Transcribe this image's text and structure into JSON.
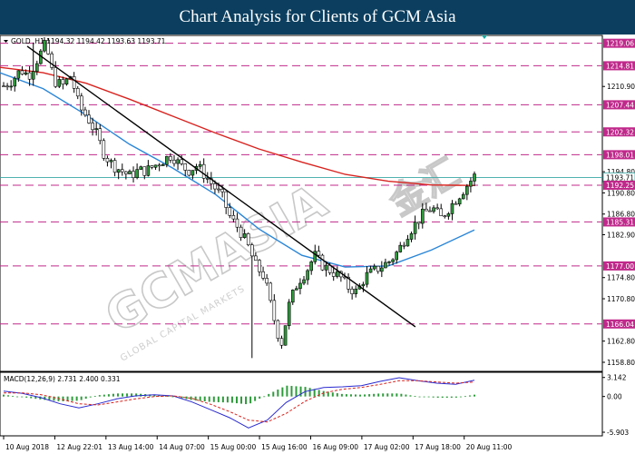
{
  "banner": {
    "title": "Chart Analysis for Clients of GCM Asia"
  },
  "watermark": {
    "text": "GCMASIA",
    "chinese": "金汇",
    "subtext": "GLOBAL CAPITAL MARKETS"
  },
  "chart_data": {
    "type": "candlestick",
    "header": "GOLD ,H1  1194.32 1194.42 1193.63 1193.71",
    "symbol": "GOLD",
    "timeframe": "H1",
    "ohlc_header": [
      1194.32,
      1194.42,
      1193.63,
      1193.71
    ],
    "price_axis_labels": [
      1219.06,
      1214.81,
      1210.9,
      1207.44,
      1202.32,
      1198.01,
      1194.8,
      1193.71,
      1192.25,
      1190.8,
      1186.8,
      1185.31,
      1182.9,
      1177.0,
      1174.8,
      1170.8,
      1166.04,
      1162.8,
      1158.8
    ],
    "ylim": [
      1157.6,
      1220.2
    ],
    "support_resistance_levels": [
      1219.06,
      1214.81,
      1207.44,
      1202.32,
      1198.01,
      1192.25,
      1185.31,
      1177.0,
      1166.04
    ],
    "current_price": 1193.71,
    "time_labels": [
      "10 Aug 2018",
      "12 Aug 22:01",
      "13 Aug 14:00",
      "14 Aug 07:00",
      "15 Aug 00:00",
      "15 Aug 16:00",
      "16 Aug 09:00",
      "17 Aug 02:00",
      "17 Aug 18:00",
      "20 Aug 11:00"
    ],
    "close_path": [
      1211,
      1212,
      1214,
      1213,
      1216,
      1219,
      1212,
      1211,
      1213,
      1207,
      1205,
      1202,
      1198,
      1196,
      1195,
      1194,
      1195,
      1195,
      1196,
      1197,
      1198,
      1196,
      1195,
      1196,
      1194,
      1192,
      1190,
      1186,
      1184,
      1181,
      1177,
      1175,
      1168,
      1162,
      1170,
      1174,
      1176,
      1179,
      1177,
      1176,
      1175,
      1173,
      1172,
      1175,
      1176,
      1177,
      1178,
      1180,
      1183,
      1185,
      1187,
      1188,
      1186,
      1188,
      1190,
      1192,
      1194
    ],
    "trendline": {
      "from": [
        "10 Aug 2018",
        1218.5
      ],
      "to": [
        "17 Aug 02:00",
        1165.5
      ]
    },
    "ma_slow_red": [
      1214.5,
      1213.5,
      1211.5,
      1208.5,
      1205.3,
      1202.1,
      1199.1,
      1196.6,
      1194.3,
      1193.0,
      1192.3,
      1192.2
    ],
    "ma_fast_blue": [
      1213.5,
      1210.5,
      1205.5,
      1200.0,
      1195.5,
      1190.5,
      1184.0,
      1179.0,
      1176.8,
      1177.0,
      1180.0,
      1183.8
    ],
    "macd": {
      "label": "MACD(12,26,9) 2.731 2.400 0.331",
      "params": [
        12,
        26,
        9
      ],
      "values": [
        2.731,
        2.4,
        0.331
      ],
      "scale_labels": [
        3.142,
        0.0,
        -5.903
      ],
      "ylim": [
        -6.2,
        3.4
      ],
      "line_blue": [
        0.9,
        0.5,
        -0.2,
        -1.2,
        -1.9,
        -1.2,
        -0.4,
        0.1,
        0.3,
        0.1,
        -0.9,
        -2.2,
        -3.5,
        -5.2,
        -3.9,
        -1.0,
        0.8,
        1.5,
        1.6,
        1.8,
        2.5,
        3.1,
        2.6,
        2.2,
        2.0,
        2.7
      ],
      "signal_red": [
        0.6,
        0.6,
        0.3,
        -0.4,
        -1.2,
        -1.4,
        -0.9,
        -0.4,
        0.0,
        0.1,
        -0.3,
        -1.3,
        -2.5,
        -3.9,
        -4.2,
        -2.8,
        -0.8,
        0.6,
        1.2,
        1.5,
        2.0,
        2.6,
        2.6,
        2.4,
        2.2,
        2.4
      ],
      "histogram": [
        0.3,
        -0.1,
        -0.5,
        -0.8,
        -0.7,
        0.2,
        0.5,
        0.5,
        0.3,
        0.0,
        -0.6,
        -0.9,
        -1.0,
        -1.3,
        0.3,
        1.8,
        1.6,
        0.9,
        0.4,
        0.3,
        0.5,
        0.5,
        0.0,
        -0.2,
        -0.2,
        0.3
      ]
    }
  }
}
